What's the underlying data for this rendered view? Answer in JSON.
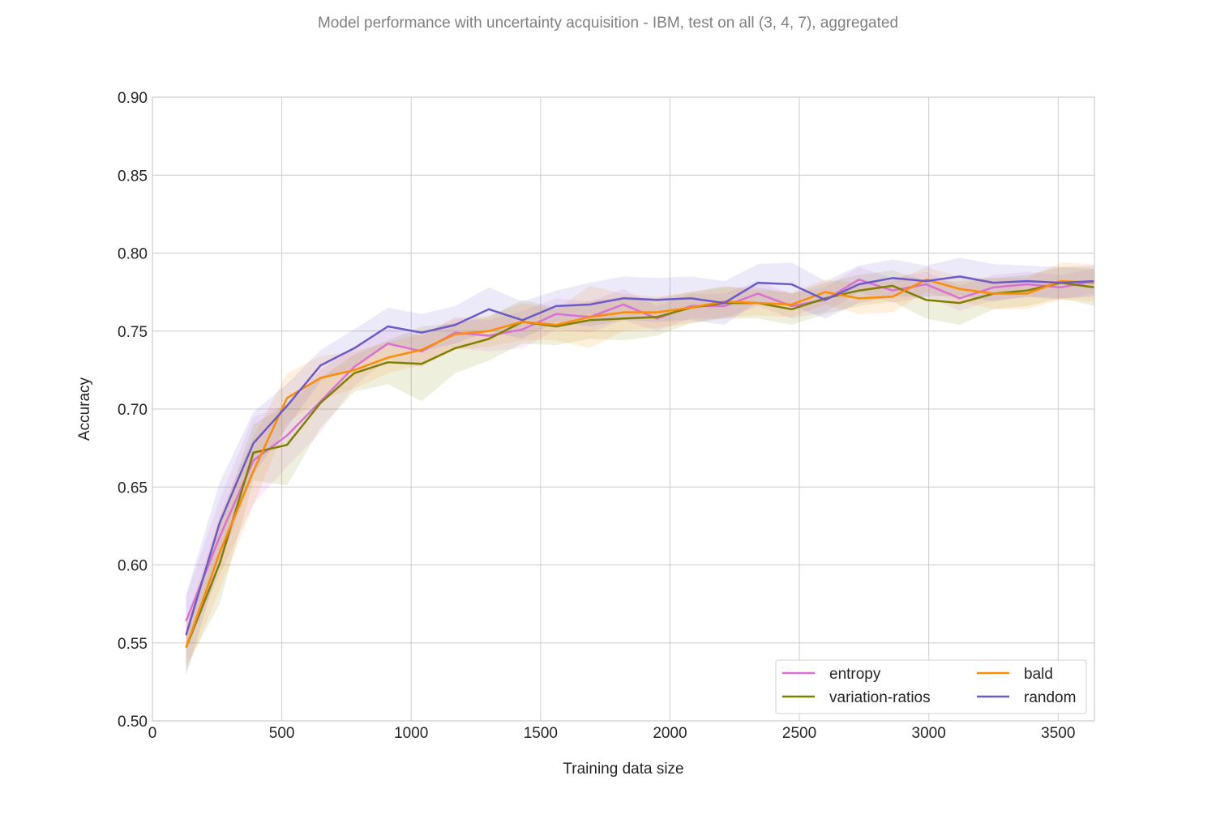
{
  "chart_data": {
    "type": "line",
    "title": "Model performance with uncertainty acquisition - IBM, test on all (3, 4, 7), aggregated",
    "xlabel": "Training data size",
    "ylabel": "Accuracy",
    "xlim": [
      0,
      3640
    ],
    "ylim": [
      0.5,
      0.9
    ],
    "xticks": [
      0,
      500,
      1000,
      1500,
      2000,
      2500,
      3000,
      3500
    ],
    "yticks": [
      0.5,
      0.55,
      0.6,
      0.65,
      0.7,
      0.75,
      0.8,
      0.85,
      0.9
    ],
    "xtick_labels": [
      "0",
      "500",
      "1000",
      "1500",
      "2000",
      "2500",
      "3000",
      "3500"
    ],
    "ytick_labels": [
      "0.50",
      "0.55",
      "0.60",
      "0.65",
      "0.70",
      "0.75",
      "0.80",
      "0.85",
      "0.90"
    ],
    "grid": true,
    "legend_position": "bottom-right",
    "x": [
      130,
      260,
      390,
      520,
      650,
      780,
      910,
      1040,
      1170,
      1300,
      1430,
      1560,
      1690,
      1820,
      1950,
      2080,
      2210,
      2340,
      2470,
      2600,
      2730,
      2860,
      2990,
      3120,
      3250,
      3380,
      3510,
      3640
    ],
    "series": [
      {
        "name": "entropy",
        "color": "#da70d6",
        "values": [
          0.564,
          0.618,
          0.667,
          0.683,
          0.705,
          0.727,
          0.742,
          0.737,
          0.749,
          0.747,
          0.751,
          0.761,
          0.759,
          0.767,
          0.758,
          0.766,
          0.766,
          0.774,
          0.766,
          0.77,
          0.783,
          0.776,
          0.78,
          0.771,
          0.778,
          0.78,
          0.778,
          0.782
        ],
        "band": [
          0.016,
          0.024,
          0.028,
          0.02,
          0.02,
          0.012,
          0.01,
          0.01,
          0.01,
          0.01,
          0.012,
          0.01,
          0.01,
          0.01,
          0.008,
          0.008,
          0.008,
          0.008,
          0.008,
          0.008,
          0.008,
          0.008,
          0.008,
          0.008,
          0.008,
          0.008,
          0.008,
          0.008
        ]
      },
      {
        "name": "variation-ratios",
        "color": "#808000",
        "values": [
          0.547,
          0.601,
          0.672,
          0.677,
          0.704,
          0.723,
          0.73,
          0.729,
          0.739,
          0.745,
          0.756,
          0.753,
          0.757,
          0.758,
          0.759,
          0.765,
          0.768,
          0.768,
          0.764,
          0.771,
          0.776,
          0.779,
          0.77,
          0.768,
          0.774,
          0.776,
          0.781,
          0.778
        ],
        "band": [
          0.012,
          0.026,
          0.018,
          0.026,
          0.016,
          0.012,
          0.014,
          0.024,
          0.016,
          0.014,
          0.014,
          0.012,
          0.012,
          0.014,
          0.012,
          0.01,
          0.01,
          0.01,
          0.01,
          0.01,
          0.01,
          0.01,
          0.012,
          0.014,
          0.01,
          0.01,
          0.01,
          0.012
        ]
      },
      {
        "name": "bald",
        "color": "#ff8c00",
        "values": [
          0.547,
          0.608,
          0.66,
          0.707,
          0.72,
          0.725,
          0.733,
          0.738,
          0.748,
          0.75,
          0.756,
          0.754,
          0.759,
          0.762,
          0.762,
          0.765,
          0.769,
          0.768,
          0.767,
          0.775,
          0.771,
          0.772,
          0.783,
          0.777,
          0.774,
          0.774,
          0.782,
          0.781
        ],
        "band": [
          0.016,
          0.024,
          0.022,
          0.016,
          0.014,
          0.012,
          0.01,
          0.01,
          0.01,
          0.01,
          0.012,
          0.01,
          0.02,
          0.012,
          0.01,
          0.01,
          0.01,
          0.008,
          0.008,
          0.008,
          0.01,
          0.01,
          0.008,
          0.008,
          0.01,
          0.01,
          0.012,
          0.012
        ]
      },
      {
        "name": "random",
        "color": "#6a5acd",
        "values": [
          0.555,
          0.627,
          0.678,
          0.702,
          0.728,
          0.739,
          0.753,
          0.749,
          0.754,
          0.764,
          0.757,
          0.766,
          0.767,
          0.771,
          0.77,
          0.771,
          0.768,
          0.781,
          0.78,
          0.77,
          0.78,
          0.784,
          0.782,
          0.785,
          0.781,
          0.782,
          0.781,
          0.782
        ],
        "band": [
          0.026,
          0.026,
          0.02,
          0.014,
          0.01,
          0.012,
          0.012,
          0.012,
          0.012,
          0.014,
          0.012,
          0.01,
          0.014,
          0.014,
          0.014,
          0.014,
          0.014,
          0.012,
          0.014,
          0.012,
          0.012,
          0.012,
          0.01,
          0.012,
          0.012,
          0.01,
          0.01,
          0.01
        ]
      }
    ]
  }
}
